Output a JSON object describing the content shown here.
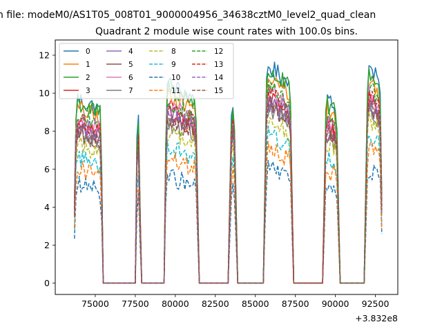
{
  "chart_data": {
    "type": "line",
    "suptitle": "n file: modeM0/AS1T05_008T01_9000004956_34638cztM0_level2_quad_clean",
    "title": "Quadrant 2 module wise count rates with 100.0s bins.",
    "xlabel": "",
    "ylabel": "",
    "x_offset_label": "+3.832e8",
    "x_offset": 383200000,
    "xlim": [
      72500,
      93900
    ],
    "ylim": [
      -0.6,
      12.8
    ],
    "xticks": [
      75000,
      77500,
      80000,
      82500,
      85000,
      87500,
      90000,
      92500
    ],
    "xtick_labels": [
      "75000",
      "77500",
      "80000",
      "82500",
      "85000",
      "87500",
      "90000",
      "92500"
    ],
    "yticks": [
      0,
      2,
      4,
      6,
      8,
      10,
      12
    ],
    "ytick_labels": [
      "0",
      "2",
      "4",
      "6",
      "8",
      "10",
      "12"
    ],
    "grid": false,
    "legend_position": "upper-left",
    "bin_seconds": 100,
    "time_range": [
      73700,
      92900
    ],
    "on_intervals": [
      [
        73700,
        75450
      ],
      [
        77530,
        77800
      ],
      [
        79350,
        81400
      ],
      [
        83400,
        83800
      ],
      [
        85600,
        87300
      ],
      [
        89300,
        90200
      ],
      [
        91900,
        92900
      ]
    ],
    "series": [
      {
        "name": "0",
        "color": "#1f77b4",
        "dash": "solid",
        "level": 9.8
      },
      {
        "name": "1",
        "color": "#ff7f0e",
        "dash": "solid",
        "level": 9.3
      },
      {
        "name": "2",
        "color": "#2ca02c",
        "dash": "solid",
        "level": 9.6
      },
      {
        "name": "3",
        "color": "#d62728",
        "dash": "solid",
        "level": 8.3
      },
      {
        "name": "4",
        "color": "#9467bd",
        "dash": "solid",
        "level": 8.4
      },
      {
        "name": "5",
        "color": "#8c564b",
        "dash": "solid",
        "level": 8.1
      },
      {
        "name": "6",
        "color": "#e377c2",
        "dash": "solid",
        "level": 8.7
      },
      {
        "name": "7",
        "color": "#7f7f7f",
        "dash": "solid",
        "level": 7.9
      },
      {
        "name": "8",
        "color": "#bcbd22",
        "dash": "dashed",
        "level": 7.4
      },
      {
        "name": "9",
        "color": "#17becf",
        "dash": "dashed",
        "level": 6.7
      },
      {
        "name": "10",
        "color": "#1f77b4",
        "dash": "dashed",
        "level": 5.2
      },
      {
        "name": "11",
        "color": "#ff7f0e",
        "dash": "dashed",
        "level": 6.1
      },
      {
        "name": "12",
        "color": "#2ca02c",
        "dash": "dashed",
        "level": 8.9
      },
      {
        "name": "13",
        "color": "#d62728",
        "dash": "dashed",
        "level": 8.6
      },
      {
        "name": "14",
        "color": "#9467bd",
        "dash": "dashed",
        "level": 8.2
      },
      {
        "name": "15",
        "color": "#8c564b",
        "dash": "dashed",
        "level": 8.0
      }
    ]
  }
}
